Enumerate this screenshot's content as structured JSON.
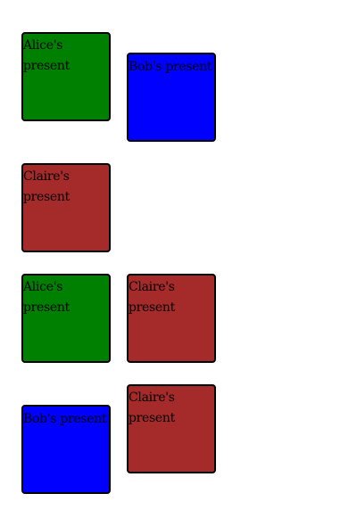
{
  "colors": {
    "alice": "#008000",
    "bob": "#0000ff",
    "claire": "#a52a2a",
    "border": "#000000"
  },
  "presents": [
    {
      "owner": "alice",
      "label": "Alice's present"
    },
    {
      "owner": "bob",
      "label": "Bob's present"
    },
    {
      "owner": "claire",
      "label": "Claire's present"
    },
    {
      "owner": "alice",
      "label": "Alice's present"
    },
    {
      "owner": "claire",
      "label": "Claire's present"
    },
    {
      "owner": "bob",
      "label": "Bob's present"
    },
    {
      "owner": "claire",
      "label": "Claire's present"
    }
  ]
}
